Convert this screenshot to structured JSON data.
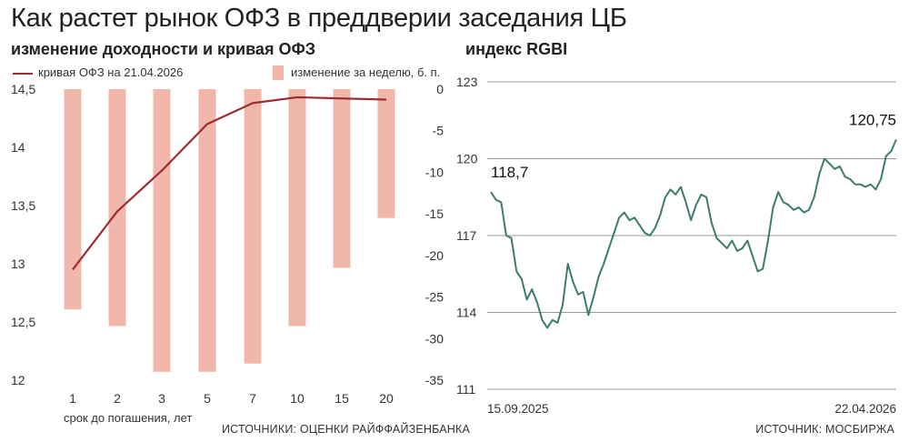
{
  "title": "Как растет рынок ОФЗ в преддверии заседания ЦБ",
  "left_panel": {
    "subtitle": "изменение доходности и кривая ОФЗ",
    "legend_line": "кривая ОФЗ на 21.04.2026",
    "legend_bar": "изменение за неделю, б. п.",
    "xlabel": "срок до погашения, лет",
    "source": "ИСТОЧНИКИ: ОЦЕНКИ РАЙФФАЙЗЕНБАНКА"
  },
  "right_panel": {
    "subtitle": "индекс RGBI",
    "start_label": "118,7",
    "end_label": "120,75",
    "x_start": "15.09.2025",
    "x_end": "22.04.2026",
    "source": "ИСТОЧНИК: МОСБИРЖА"
  },
  "colors": {
    "line": "#9e2b2f",
    "bar": "#f2b7ab",
    "rgbi": "#3d7d68",
    "grid": "#9a9a9a"
  },
  "chart_data": [
    {
      "type": "bar+line",
      "title": "изменение доходности и кривая ОФЗ",
      "xlabel": "срок до погашения, лет",
      "categories": [
        "1",
        "2",
        "3",
        "5",
        "7",
        "10",
        "15",
        "20"
      ],
      "series": [
        {
          "name": "кривая ОФЗ на 21.04.2026",
          "axis": "left",
          "type": "line",
          "values": [
            12.95,
            13.45,
            13.8,
            14.2,
            14.38,
            14.43,
            14.42,
            14.41
          ]
        },
        {
          "name": "изменение за неделю, б. п.",
          "axis": "right",
          "type": "bar",
          "values": [
            -26.5,
            -28.5,
            -34,
            -34,
            -33,
            -28.5,
            -21.5,
            -15.5
          ]
        }
      ],
      "y_left": {
        "lim": [
          12,
          14.5
        ],
        "ticks": [
          "12",
          "12,5",
          "13",
          "13,5",
          "14",
          "14,5"
        ]
      },
      "y_right": {
        "lim": [
          -35,
          0
        ],
        "ticks": [
          "0",
          "-5",
          "-10",
          "-15",
          "-20",
          "-25",
          "-30",
          "-35"
        ]
      }
    },
    {
      "type": "line",
      "title": "индекс RGBI",
      "x_range": [
        "15.09.2025",
        "22.04.2026"
      ],
      "ylim": [
        111,
        123
      ],
      "yticks": [
        "111",
        "114",
        "117",
        "120",
        "123"
      ],
      "values": [
        118.7,
        118.4,
        118.3,
        117.0,
        116.9,
        115.6,
        115.3,
        114.5,
        114.9,
        114.4,
        113.7,
        113.4,
        113.7,
        113.6,
        114.3,
        115.9,
        115.2,
        114.7,
        114.8,
        113.9,
        114.6,
        115.4,
        115.9,
        116.5,
        117.1,
        117.7,
        117.9,
        117.6,
        117.7,
        117.4,
        117.1,
        117.0,
        117.3,
        117.8,
        118.5,
        118.8,
        118.6,
        118.9,
        118.3,
        117.6,
        118.2,
        118.6,
        118.5,
        117.5,
        116.9,
        116.7,
        116.5,
        116.8,
        116.4,
        116.5,
        116.8,
        116.2,
        115.6,
        115.7,
        116.8,
        118.1,
        118.7,
        118.3,
        118.2,
        118.0,
        118.1,
        117.9,
        118.0,
        118.5,
        119.4,
        120.0,
        119.8,
        119.6,
        119.7,
        119.3,
        119.2,
        119.0,
        119.0,
        118.9,
        119.0,
        118.8,
        119.2,
        120.1,
        120.3,
        120.75
      ]
    }
  ]
}
